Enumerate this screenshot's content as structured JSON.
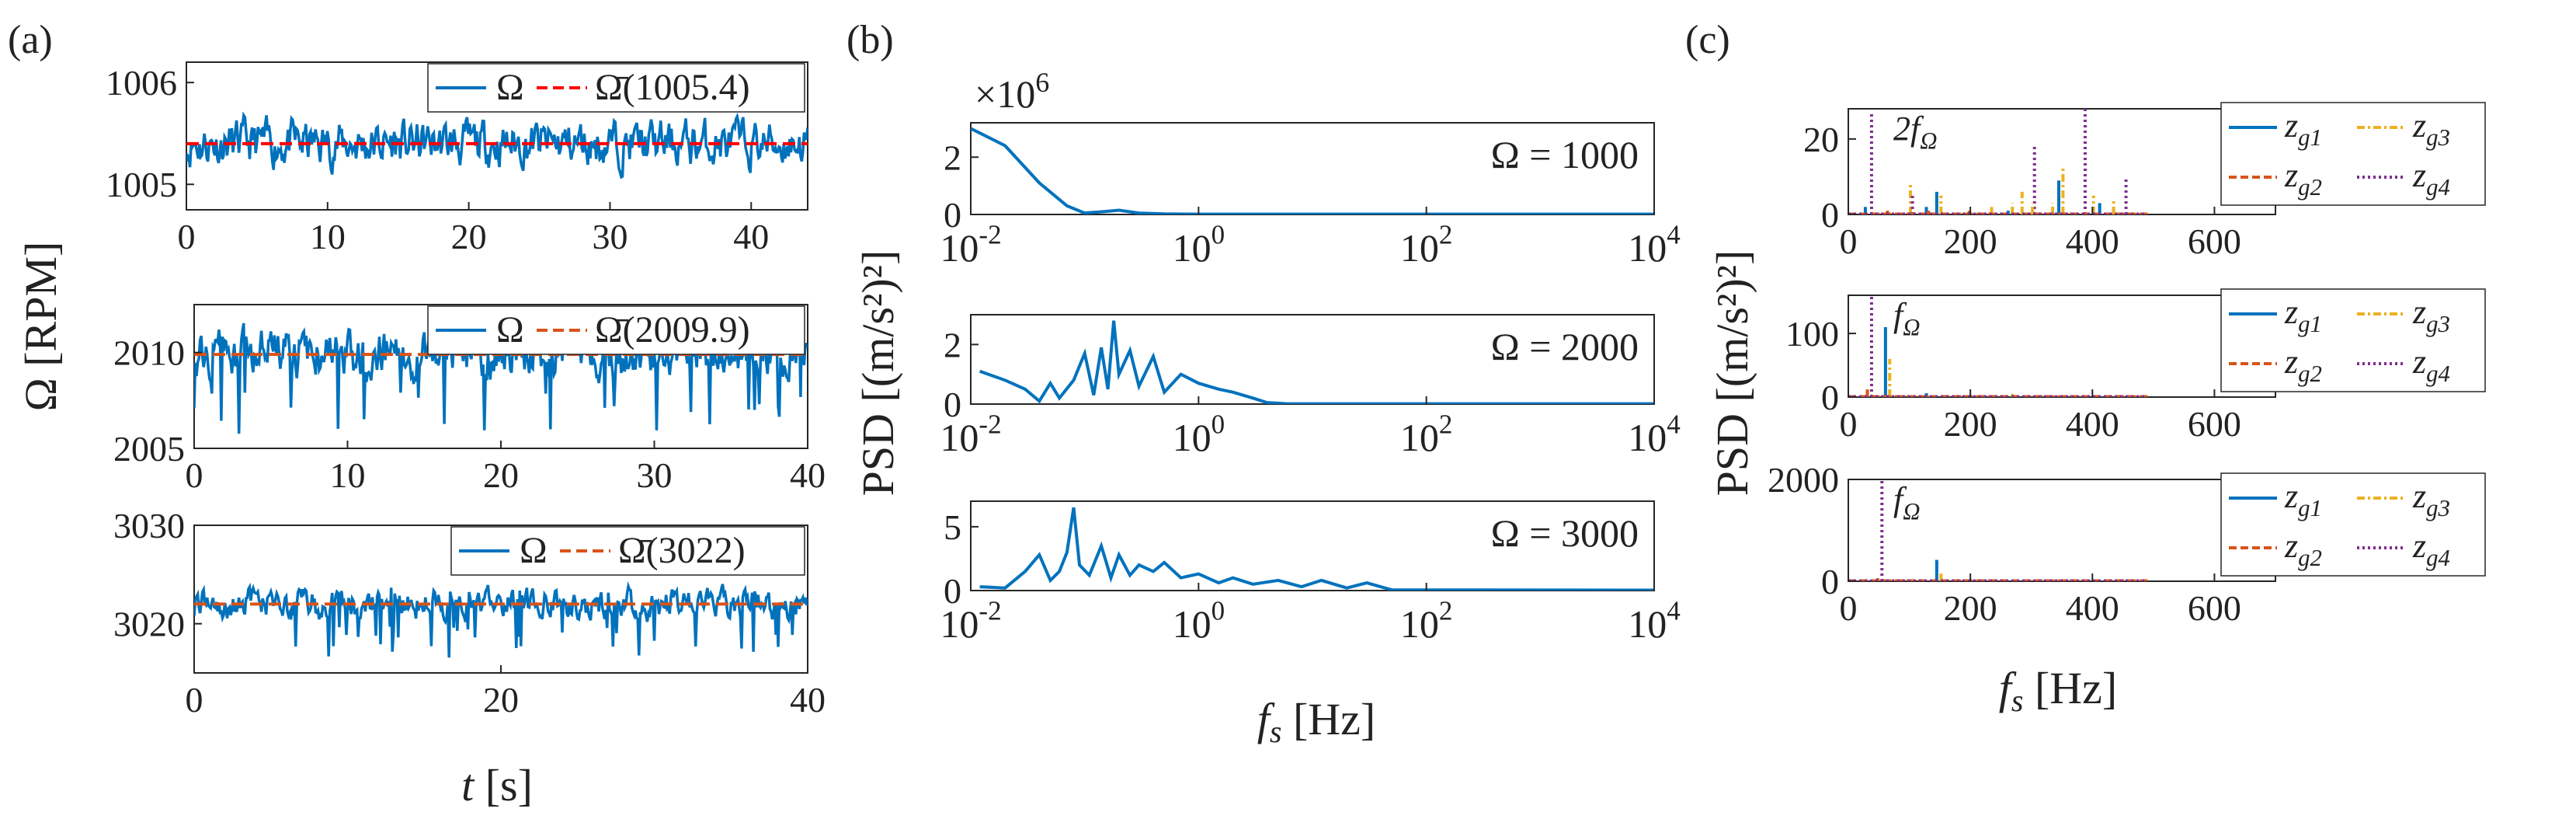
{
  "panel_labels": [
    "(a)",
    "(b)",
    "(c)"
  ],
  "colors": {
    "blue": "#0072BD",
    "orange": "#D95319",
    "yellow": "#EDB120",
    "purple": "#7E2F8E",
    "red": "#FF0000",
    "axis": "#262626"
  },
  "chart_data": [
    {
      "id": "a1",
      "panel": "a",
      "type": "line",
      "xlim": [
        0,
        44
      ],
      "ylim": [
        1004.75,
        1006.2
      ],
      "xticks": [
        0,
        10,
        20,
        30,
        40
      ],
      "yticks": [
        1005,
        1006
      ],
      "series": [
        {
          "name": "Ω",
          "color": "#0072BD",
          "style": "solid",
          "seed": 11,
          "base": 1005.4,
          "amp": 0.22
        },
        {
          "name": "Ω̄(1005.4)",
          "color": "#FF0000",
          "style": "dash",
          "const": 1005.4
        }
      ],
      "legend": [
        "Ω",
        "Ω̄(1005.4)"
      ],
      "legend_pos": "top-right"
    },
    {
      "id": "a2",
      "panel": "a",
      "type": "line",
      "xlim": [
        0,
        40
      ],
      "ylim": [
        2005,
        2012.5
      ],
      "xticks": [
        0,
        10,
        20,
        30,
        40
      ],
      "yticks": [
        2005,
        2010
      ],
      "series": [
        {
          "name": "Ω",
          "color": "#0072BD",
          "style": "solid",
          "seed": 23,
          "base": 2009.9,
          "amp": 1.2,
          "dips": true
        },
        {
          "name": "Ω̄(2009.9)",
          "color": "#D95319",
          "style": "dash",
          "const": 2009.9
        }
      ],
      "legend": [
        "Ω",
        "Ω̄(2009.9)"
      ],
      "legend_pos": "top-right"
    },
    {
      "id": "a3",
      "panel": "a",
      "type": "line",
      "xlim": [
        0,
        40
      ],
      "ylim": [
        3015,
        3030
      ],
      "xticks": [
        0,
        20,
        40
      ],
      "yticks": [
        3020,
        3030
      ],
      "series": [
        {
          "name": "Ω",
          "color": "#0072BD",
          "style": "solid",
          "seed": 37,
          "base": 3022,
          "amp": 1.5,
          "dips": true
        },
        {
          "name": "Ω̄(3022)",
          "color": "#D95319",
          "style": "dash",
          "const": 3022
        }
      ],
      "legend": [
        "Ω",
        "Ω̄(3022)"
      ],
      "legend_pos": "top-right"
    },
    {
      "id": "b1",
      "panel": "b",
      "type": "line",
      "xscale": "log",
      "xlim": [
        0.01,
        10000
      ],
      "ylim": [
        0,
        3.2
      ],
      "yexp": "×10^6",
      "xticks": [
        "10^-2",
        "10^0",
        "10^2",
        "10^4"
      ],
      "yticks": [
        0,
        2
      ],
      "curve": [
        [
          0.01,
          3.0
        ],
        [
          0.02,
          2.4
        ],
        [
          0.04,
          1.1
        ],
        [
          0.07,
          0.3
        ],
        [
          0.1,
          0.05
        ],
        [
          0.15,
          0.1
        ],
        [
          0.2,
          0.15
        ],
        [
          0.3,
          0.05
        ],
        [
          0.5,
          0.02
        ],
        [
          1,
          0.01
        ],
        [
          10000,
          0.01
        ]
      ],
      "annotation": "Ω = 1000"
    },
    {
      "id": "b2",
      "panel": "b",
      "type": "line",
      "xscale": "log",
      "xlim": [
        0.01,
        10000
      ],
      "ylim": [
        0,
        3
      ],
      "xticks": [
        "10^-2",
        "10^0",
        "10^2",
        "10^4"
      ],
      "yticks": [
        0,
        2
      ],
      "curve": [
        [
          0.012,
          1.1
        ],
        [
          0.02,
          0.8
        ],
        [
          0.03,
          0.5
        ],
        [
          0.04,
          0.1
        ],
        [
          0.05,
          0.7
        ],
        [
          0.06,
          0.2
        ],
        [
          0.08,
          0.8
        ],
        [
          0.1,
          1.7
        ],
        [
          0.12,
          0.3
        ],
        [
          0.14,
          1.9
        ],
        [
          0.16,
          0.5
        ],
        [
          0.18,
          2.8
        ],
        [
          0.2,
          1.0
        ],
        [
          0.25,
          1.8
        ],
        [
          0.3,
          0.6
        ],
        [
          0.4,
          1.6
        ],
        [
          0.5,
          0.4
        ],
        [
          0.7,
          1.0
        ],
        [
          1.0,
          0.7
        ],
        [
          1.5,
          0.5
        ],
        [
          2,
          0.4
        ],
        [
          3,
          0.2
        ],
        [
          4,
          0.05
        ],
        [
          6,
          0.01
        ],
        [
          10000,
          0.01
        ]
      ],
      "annotation": "Ω = 2000"
    },
    {
      "id": "b3",
      "panel": "b",
      "type": "line",
      "xscale": "log",
      "xlim": [
        0.01,
        10000
      ],
      "ylim": [
        0,
        7
      ],
      "xticks": [
        "10^-2",
        "10^0",
        "10^2",
        "10^4"
      ],
      "yticks": [
        0,
        5
      ],
      "curve": [
        [
          0.012,
          0.3
        ],
        [
          0.02,
          0.2
        ],
        [
          0.03,
          1.5
        ],
        [
          0.04,
          2.8
        ],
        [
          0.05,
          0.8
        ],
        [
          0.06,
          1.5
        ],
        [
          0.07,
          3.0
        ],
        [
          0.08,
          6.5
        ],
        [
          0.09,
          2.0
        ],
        [
          0.11,
          1.2
        ],
        [
          0.14,
          3.5
        ],
        [
          0.17,
          1.0
        ],
        [
          0.2,
          2.8
        ],
        [
          0.25,
          1.2
        ],
        [
          0.3,
          2.0
        ],
        [
          0.4,
          1.5
        ],
        [
          0.5,
          2.2
        ],
        [
          0.7,
          1.0
        ],
        [
          1.0,
          1.3
        ],
        [
          1.5,
          0.6
        ],
        [
          2,
          1.0
        ],
        [
          3,
          0.5
        ],
        [
          5,
          0.8
        ],
        [
          8,
          0.3
        ],
        [
          12,
          0.8
        ],
        [
          20,
          0.2
        ],
        [
          30,
          0.6
        ],
        [
          50,
          0.05
        ],
        [
          10000,
          0.03
        ]
      ],
      "annotation": "Ω = 3000"
    },
    {
      "id": "c1",
      "panel": "c",
      "type": "bar",
      "xlim": [
        0,
        700
      ],
      "ylim": [
        0,
        28
      ],
      "xticks": [
        0,
        200,
        400,
        600
      ],
      "yticks": [
        0,
        20
      ],
      "annotation": "2f_Ω",
      "stems": [
        [
          33,
          0,
          2
        ],
        [
          33,
          3,
          27
        ],
        [
          66,
          1,
          1
        ],
        [
          100,
          2,
          8
        ],
        [
          100,
          3,
          5
        ],
        [
          133,
          0,
          2
        ],
        [
          133,
          1,
          1
        ],
        [
          150,
          0,
          6
        ],
        [
          150,
          2,
          5
        ],
        [
          200,
          1,
          1
        ],
        [
          233,
          2,
          2
        ],
        [
          267,
          2,
          3
        ],
        [
          267,
          0,
          1
        ],
        [
          283,
          2,
          6
        ],
        [
          300,
          3,
          18
        ],
        [
          300,
          2,
          3
        ],
        [
          333,
          2,
          3
        ],
        [
          350,
          0,
          9
        ],
        [
          350,
          2,
          13
        ],
        [
          383,
          3,
          29
        ],
        [
          400,
          2,
          5
        ],
        [
          417,
          0,
          3
        ],
        [
          433,
          2,
          4
        ],
        [
          450,
          3,
          10
        ]
      ],
      "legend": [
        "z_g1",
        "z_g2",
        "z_g3",
        "z_g4"
      ],
      "legend_pos": "outside-right"
    },
    {
      "id": "c2",
      "panel": "c",
      "type": "bar",
      "xlim": [
        0,
        700
      ],
      "ylim": [
        0,
        160
      ],
      "xticks": [
        0,
        200,
        400,
        600
      ],
      "yticks": [
        0,
        100
      ],
      "annotation": "f_Ω",
      "stems": [
        [
          33,
          3,
          160
        ],
        [
          33,
          1,
          12
        ],
        [
          66,
          0,
          110
        ],
        [
          66,
          2,
          60
        ],
        [
          133,
          0,
          6
        ],
        [
          267,
          2,
          5
        ],
        [
          400,
          3,
          3
        ],
        [
          133,
          1,
          2
        ]
      ],
      "legend": [
        "z_g1",
        "z_g2",
        "z_g3",
        "z_g4"
      ],
      "legend_pos": "outside-right"
    },
    {
      "id": "c3",
      "panel": "c",
      "type": "bar",
      "xlim": [
        0,
        700
      ],
      "ylim": [
        0,
        2000
      ],
      "xticks": [
        0,
        200,
        400,
        600
      ],
      "yticks": [
        0,
        2000
      ],
      "annotation": "f_Ω",
      "stems": [
        [
          50,
          3,
          2000
        ],
        [
          50,
          1,
          60
        ],
        [
          150,
          0,
          420
        ],
        [
          150,
          2,
          150
        ]
      ],
      "legend": [
        "z_g1",
        "z_g2",
        "z_g3",
        "z_g4"
      ],
      "legend_pos": "outside-right"
    }
  ],
  "axis_labels": {
    "a_y": "Ω [RPM]",
    "a_x_var": "t",
    "a_x_unit": "[s]",
    "b_y": "PSD [(m/s²)²]",
    "b_x_var": "f",
    "b_x_sub": "s",
    "b_x_unit": "[Hz]",
    "c_y": "PSD [(m/s²)²]",
    "c_x_var": "f",
    "c_x_sub": "s",
    "c_x_unit": "[Hz]"
  }
}
